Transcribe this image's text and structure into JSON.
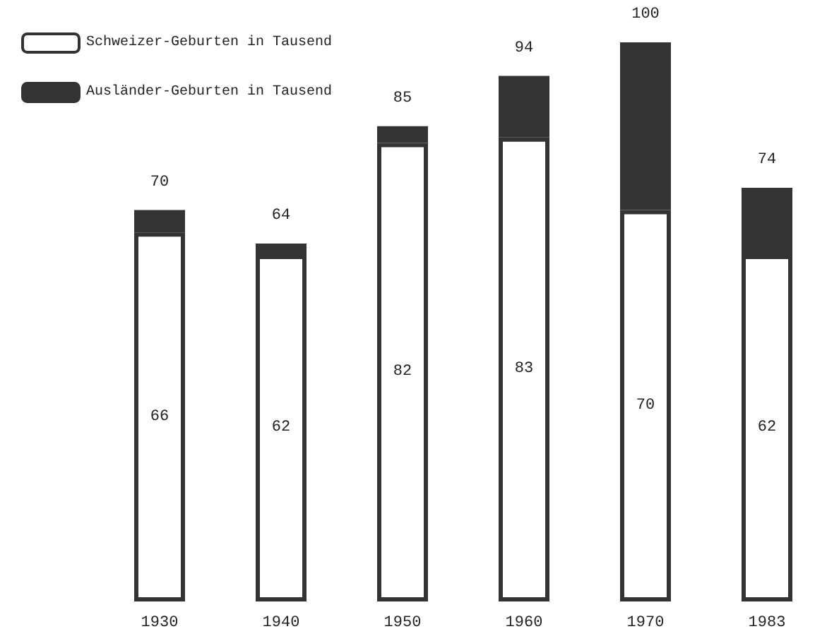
{
  "chart_data": {
    "type": "bar",
    "stacked": true,
    "legend": "top left",
    "categories": [
      "1930",
      "1940",
      "1950",
      "1960",
      "1970",
      "1983"
    ],
    "series": [
      {
        "name": "Schweizer-Geburten in Tausend",
        "color": "#ffffff",
        "values": [
          66,
          62,
          82,
          83,
          70,
          62
        ],
        "value_labels": [
          "66",
          "62",
          "82",
          "83",
          "70",
          "62"
        ]
      },
      {
        "name": "Ausländer-Geburten in Tausend",
        "color": "#333333",
        "values": [
          4,
          2,
          3,
          11,
          30,
          12
        ]
      }
    ],
    "totals": [
      "70",
      "64",
      "85",
      "94",
      "100",
      "74"
    ]
  }
}
